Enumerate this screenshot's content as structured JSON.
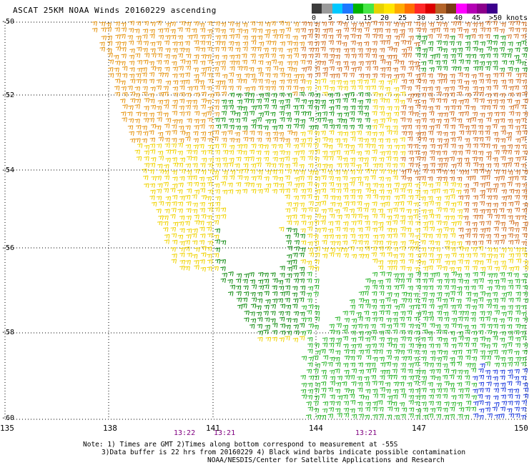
{
  "title": "ASCAT 25KM NOAA Winds 20160229 ascending",
  "colorbar": {
    "colors": [
      "#3c3c3c",
      "#9a9a9a",
      "#00c8ff",
      "#1e78ff",
      "#00b400",
      "#46e646",
      "#e6d200",
      "#ffe600",
      "#ffaa00",
      "#ff6e00",
      "#ff2828",
      "#dc0000",
      "#b46428",
      "#783c14",
      "#ff00ff",
      "#b400b4",
      "#8c008c",
      "#3c008c"
    ],
    "labels": [
      "0",
      "5",
      "10",
      "15",
      "20",
      "25",
      "30",
      "35",
      "40",
      "45",
      ">50 knots"
    ]
  },
  "lat_labels": [
    "-50",
    "-52",
    "-54",
    "-56",
    "-58",
    "-60"
  ],
  "lon_labels": [
    "135",
    "138",
    "141",
    "144",
    "147",
    "150"
  ],
  "pass_times": [
    "13:22",
    "13:21",
    "13:21"
  ],
  "notes": [
    "Note: 1) Times are GMT 2)Times along bottom correspond to measurement at -55S",
    "3)Data buffer is 22 hrs from 20160229 4) Black wind barbs indicate possible contamination",
    "NOAA/NESDIS/Center for Satellite Applications and Research"
  ]
}
